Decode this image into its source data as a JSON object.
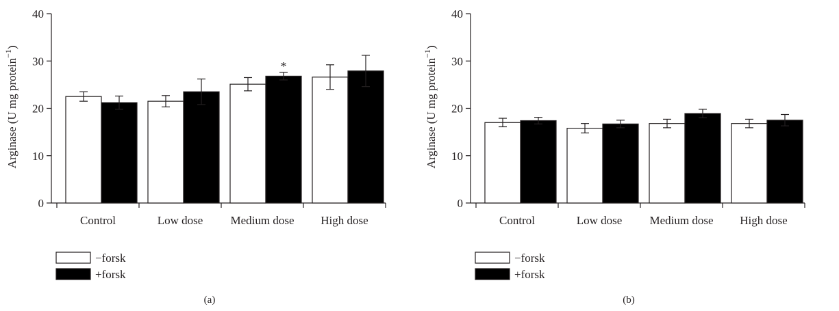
{
  "chart_data": [
    {
      "type": "bar",
      "panel_label": "(a)",
      "ylabel": "Arginase (U mg protein",
      "ylabel_sup": "−1",
      "ylabel_close": ")",
      "ylim": [
        0,
        40
      ],
      "yticks": [
        0,
        10,
        20,
        30,
        40
      ],
      "categories": [
        "Control",
        "Low dose",
        "Medium dose",
        "High dose"
      ],
      "series": [
        {
          "name": "−forsk",
          "fill": "#ffffff",
          "values": [
            22.5,
            21.5,
            25.1,
            26.6
          ],
          "errors": [
            1.0,
            1.2,
            1.4,
            2.6
          ]
        },
        {
          "name": "+forsk",
          "fill": "#000000",
          "values": [
            21.2,
            23.5,
            26.8,
            27.9
          ],
          "errors": [
            1.4,
            2.7,
            0.8,
            3.3
          ]
        }
      ],
      "annotations": [
        {
          "text": "*",
          "category": "Medium dose",
          "series": "+forsk"
        }
      ],
      "legend_placement": "bottom-left",
      "grid": false
    },
    {
      "type": "bar",
      "panel_label": "(b)",
      "ylabel": "Arginase (U mg protein",
      "ylabel_sup": "−1",
      "ylabel_close": ")",
      "ylim": [
        0,
        40
      ],
      "yticks": [
        0,
        10,
        20,
        30,
        40
      ],
      "categories": [
        "Control",
        "Low dose",
        "Medium dose",
        "High dose"
      ],
      "series": [
        {
          "name": "−forsk",
          "fill": "#ffffff",
          "values": [
            17.0,
            15.8,
            16.8,
            16.8
          ],
          "errors": [
            0.9,
            1.0,
            0.9,
            0.9
          ]
        },
        {
          "name": "+forsk",
          "fill": "#000000",
          "values": [
            17.4,
            16.7,
            18.9,
            17.5
          ],
          "errors": [
            0.7,
            0.8,
            0.9,
            1.2
          ]
        }
      ],
      "annotations": [],
      "legend_placement": "bottom-left",
      "grid": false
    }
  ]
}
